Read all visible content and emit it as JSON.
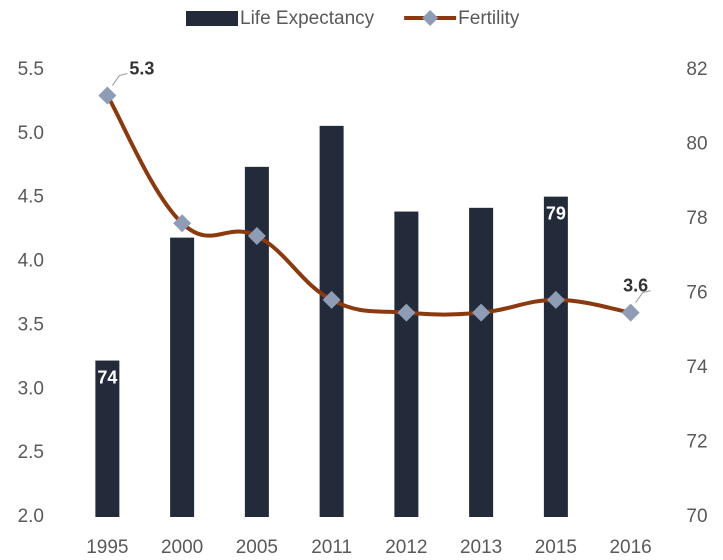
{
  "chart_data": {
    "type": "bar-line",
    "categories": [
      "1995",
      "2000",
      "2005",
      "2011",
      "2012",
      "2013",
      "2015",
      "2016"
    ],
    "series": [
      {
        "name": "Life Expectancy",
        "type": "bar",
        "axis": "y2",
        "color": "#232b3a",
        "values": [
          74.2,
          77.5,
          79.4,
          80.5,
          78.2,
          78.3,
          78.6,
          null
        ],
        "value_labels": [
          "74",
          null,
          null,
          null,
          null,
          null,
          "79",
          null
        ]
      },
      {
        "name": "Fertility",
        "type": "line",
        "axis": "y",
        "color": "#8b3a0f",
        "marker_color": "#8e9db5",
        "values": [
          5.3,
          4.3,
          4.2,
          3.7,
          3.6,
          3.6,
          3.7,
          3.6
        ],
        "value_labels": [
          "5.3",
          null,
          null,
          null,
          null,
          null,
          null,
          "3.6"
        ]
      }
    ],
    "ylim": [
      2.0,
      5.5
    ],
    "yticks": [
      {
        "value": 2.0,
        "label": "2.0"
      },
      2.5,
      {
        "value": 3.0,
        "label": "3.0"
      },
      3.5,
      {
        "value": 4.0,
        "label": "4.0"
      },
      4.5,
      {
        "value": 5.0,
        "label": "5.0"
      },
      5.5
    ],
    "y2lim": [
      70,
      82
    ],
    "y2ticks": [
      70,
      72,
      74,
      76,
      78,
      80,
      82
    ],
    "legend": "top"
  }
}
